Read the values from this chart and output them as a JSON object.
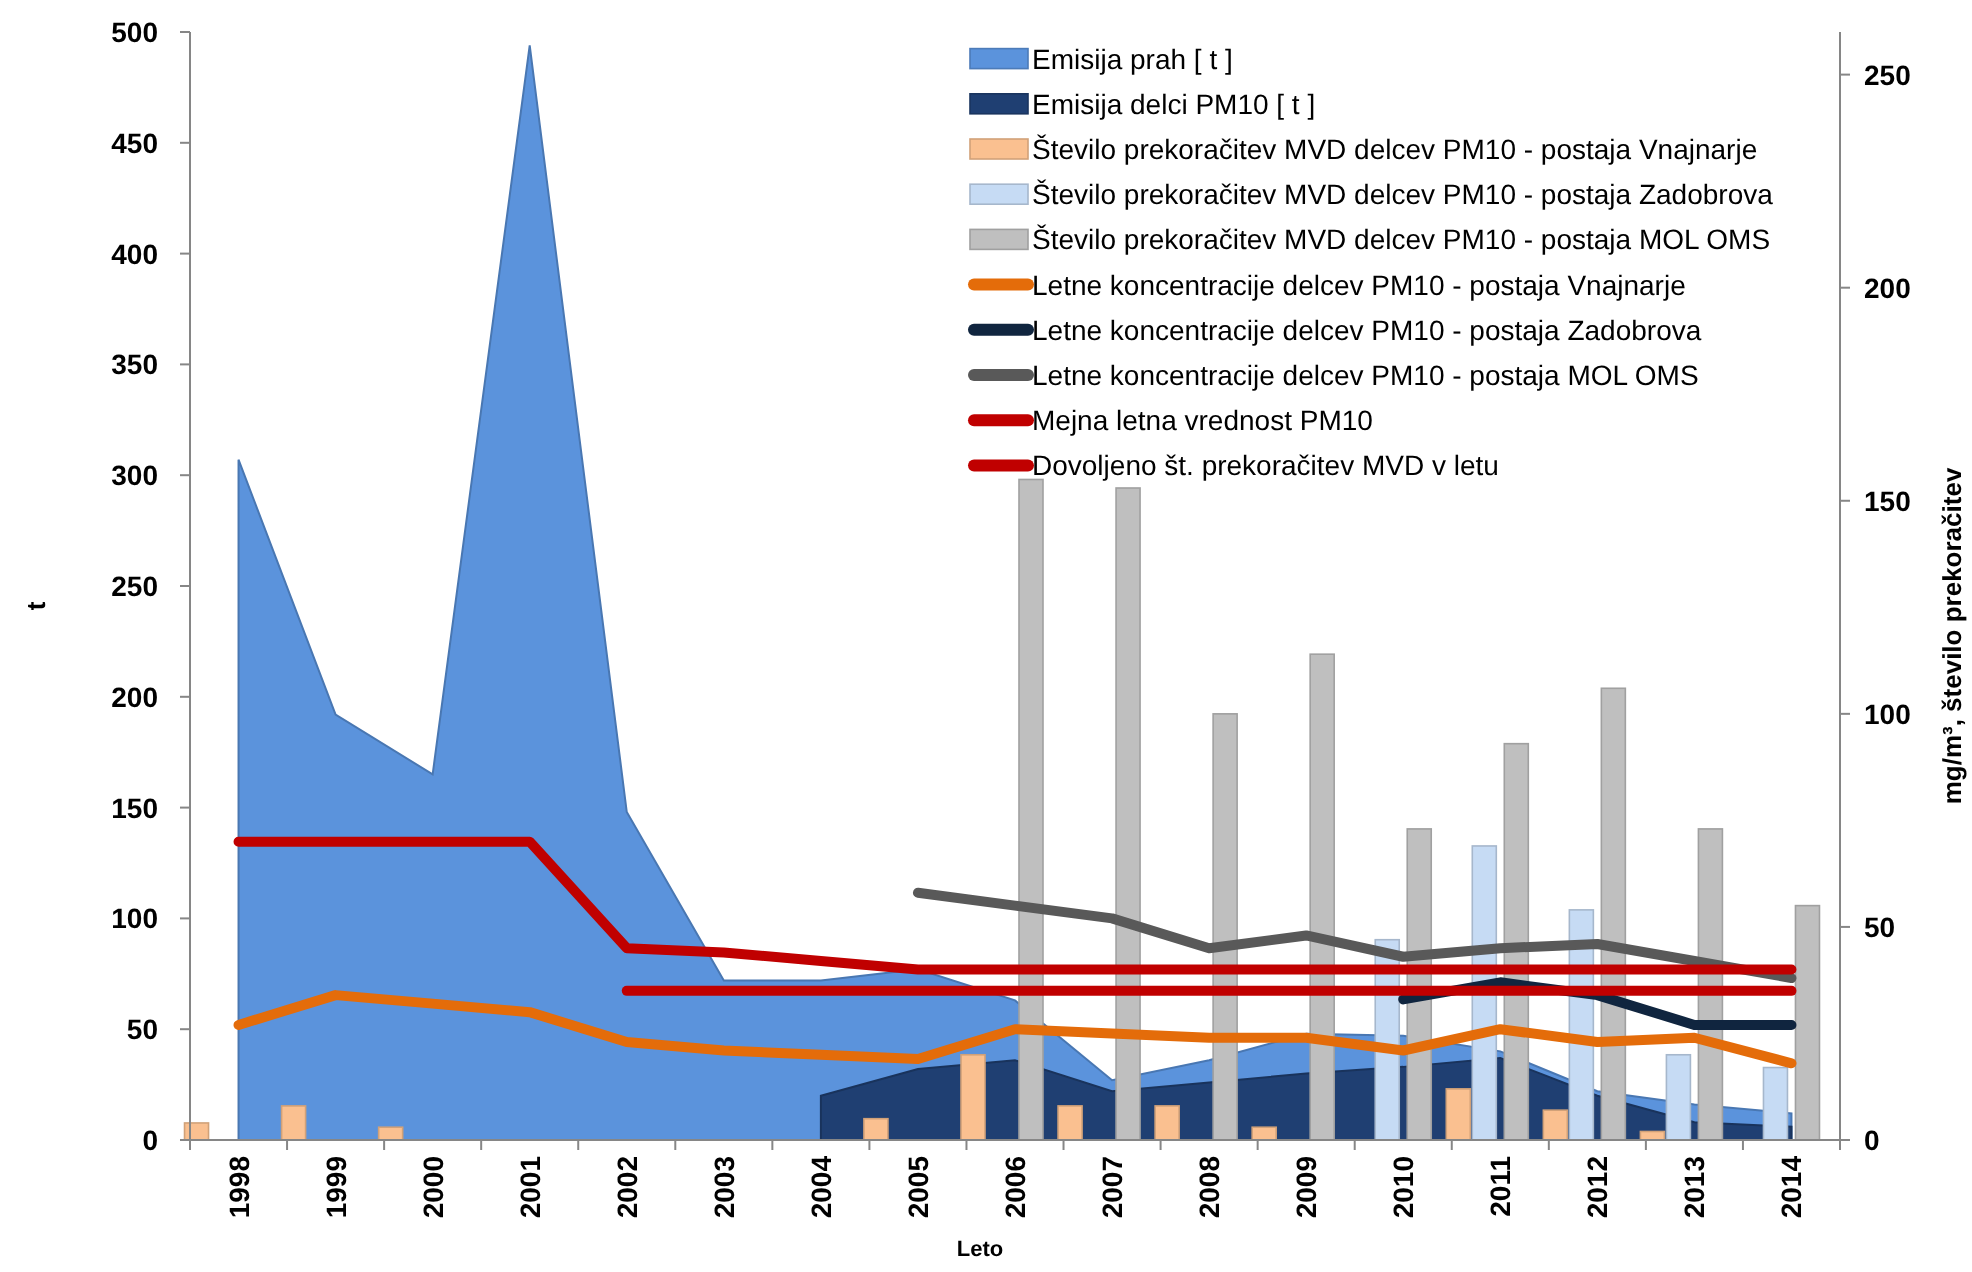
{
  "chart_data": {
    "type": "bar",
    "xlabel": "Leto",
    "ylabel": "t",
    "y2label": "mg/m³, število prekoračitev",
    "categories": [
      "1998",
      "1999",
      "2000",
      "2001",
      "2002",
      "2003",
      "2004",
      "2005",
      "2006",
      "2007",
      "2008",
      "2009",
      "2010",
      "2011",
      "2012",
      "2013",
      "2014"
    ],
    "ylim": [
      0,
      500
    ],
    "yticks": [
      0,
      50,
      100,
      150,
      200,
      250,
      300,
      350,
      400,
      450,
      500
    ],
    "y2lim": [
      0,
      260
    ],
    "y2ticks": [
      0,
      50,
      100,
      150,
      200,
      250
    ],
    "legend": "top right",
    "series": [
      {
        "name": "Emisija prah [ t ]",
        "type": "area",
        "color": "#5b93dc",
        "values": [
          307,
          192,
          165,
          494,
          148,
          72,
          72,
          77,
          63,
          27,
          36,
          48,
          47,
          40,
          22,
          16,
          12
        ]
      },
      {
        "name": "Emisija delci PM10 [ t ]",
        "type": "area",
        "color": "#1f3f72",
        "values": [
          null,
          null,
          null,
          null,
          null,
          null,
          20,
          32,
          36,
          22,
          26,
          30,
          33,
          37,
          20,
          8,
          6
        ]
      },
      {
        "name": "Število prekoračitev MVD delcev PM10 - postaja Vnajnarje",
        "axis": "y2",
        "color": "#fac090",
        "values": [
          4,
          8,
          3,
          null,
          null,
          null,
          null,
          5,
          20,
          8,
          8,
          3,
          null,
          12,
          7,
          2,
          null
        ]
      },
      {
        "name": "Število prekoračitev MVD delcev PM10 - postaja Zadobrova",
        "axis": "y2",
        "color": "#c6dbf4",
        "values": [
          null,
          null,
          null,
          null,
          null,
          null,
          null,
          null,
          null,
          null,
          null,
          null,
          47,
          69,
          54,
          20,
          17
        ]
      },
      {
        "name": "Število prekoračitev MVD delcev PM10 - postaja MOL OMS",
        "axis": "y2",
        "color": "#bfbfbf",
        "values": [
          null,
          null,
          null,
          null,
          null,
          null,
          null,
          null,
          155,
          153,
          100,
          114,
          73,
          93,
          106,
          73,
          55
        ]
      },
      {
        "name": "Letne koncentracije delcev PM10 - postaja Vnajnarje",
        "type": "line",
        "axis": "y2",
        "color": "#e46c0a",
        "values": [
          27,
          34,
          32,
          30,
          23,
          21,
          20,
          19,
          26,
          25,
          24,
          24,
          21,
          26,
          23,
          24,
          18
        ]
      },
      {
        "name": "Letne koncentracije delcev PM10 - postaja Zadobrova",
        "type": "line",
        "axis": "y2",
        "color": "#10253f",
        "values": [
          null,
          null,
          null,
          null,
          null,
          null,
          null,
          null,
          null,
          null,
          null,
          null,
          33,
          37,
          34,
          27,
          27
        ]
      },
      {
        "name": "Letne koncentracije delcev PM10 - postaja MOL OMS",
        "type": "line",
        "axis": "y2",
        "color": "#595959",
        "values": [
          null,
          null,
          null,
          null,
          null,
          null,
          null,
          58,
          55,
          52,
          45,
          48,
          43,
          45,
          46,
          42,
          38
        ]
      },
      {
        "name": "Mejna letna vrednost PM10",
        "type": "line",
        "axis": "y2",
        "color": "#c00000",
        "values": [
          70,
          70,
          70,
          70,
          45,
          44,
          42,
          40,
          40,
          40,
          40,
          40,
          40,
          40,
          40,
          40,
          40
        ]
      },
      {
        "name": "Dovoljeno št. prekoračitev MVD v letu",
        "type": "line",
        "axis": "y2",
        "color": "#c00000",
        "values": [
          null,
          null,
          null,
          null,
          35,
          35,
          35,
          35,
          35,
          35,
          35,
          35,
          35,
          35,
          35,
          35,
          35
        ]
      }
    ]
  }
}
